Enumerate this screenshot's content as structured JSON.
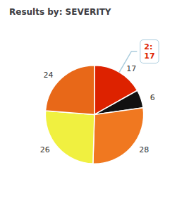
{
  "chart_data": {
    "type": "pie",
    "title": "Results by: SEVERITY",
    "values": [
      17,
      6,
      28,
      26,
      24
    ],
    "colors": [
      "#dd2200",
      "#111111",
      "#f07820",
      "#f0f040",
      "#e86818"
    ],
    "data_labels": true,
    "annotations": [
      {
        "text": "2:\n17",
        "color": "#dd2200"
      }
    ]
  }
}
